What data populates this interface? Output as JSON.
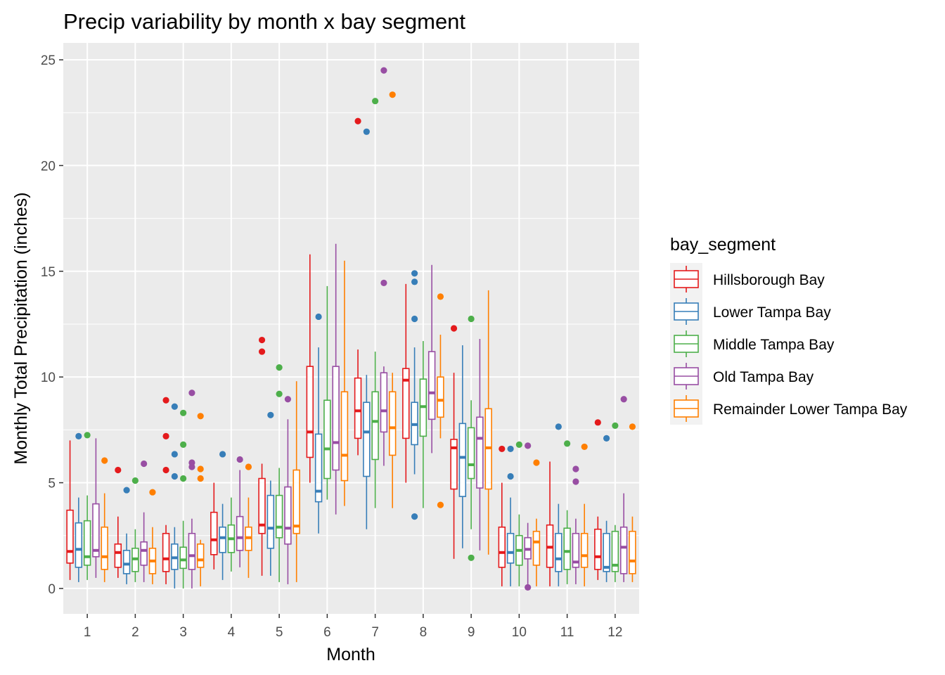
{
  "chart_data": {
    "type": "boxplot",
    "title": "Precip variability by month x bay segment",
    "xlabel": "Month",
    "ylabel": "Monthly Total Precipitation (inches)",
    "ylim": [
      -1.2,
      25.8
    ],
    "yticks": [
      0,
      5,
      10,
      15,
      20,
      25
    ],
    "categories": [
      "1",
      "2",
      "3",
      "4",
      "5",
      "6",
      "7",
      "8",
      "9",
      "10",
      "11",
      "12"
    ],
    "grid": true,
    "legend": {
      "title": "bay_segment",
      "position": "right"
    },
    "series": [
      {
        "name": "Hillsborough Bay",
        "color": "#e41a1c",
        "boxes": [
          {
            "min": 0.4,
            "q1": 1.2,
            "median": 1.75,
            "q3": 3.7,
            "max": 7.0,
            "outliers": []
          },
          {
            "min": 0.5,
            "q1": 1.0,
            "median": 1.7,
            "q3": 2.1,
            "max": 3.4,
            "outliers": [
              5.6
            ]
          },
          {
            "min": 0.2,
            "q1": 0.8,
            "median": 1.4,
            "q3": 2.6,
            "max": 3.0,
            "outliers": [
              5.6,
              7.2,
              8.9
            ]
          },
          {
            "min": 0.9,
            "q1": 1.6,
            "median": 2.3,
            "q3": 3.6,
            "max": 5.0,
            "outliers": []
          },
          {
            "min": 0.6,
            "q1": 2.6,
            "median": 3.0,
            "q3": 5.2,
            "max": 5.9,
            "outliers": [
              11.2,
              11.75
            ]
          },
          {
            "min": 5.0,
            "q1": 6.2,
            "median": 7.4,
            "q3": 10.5,
            "max": 15.8,
            "outliers": []
          },
          {
            "min": 6.3,
            "q1": 7.1,
            "median": 8.4,
            "q3": 9.95,
            "max": 11.3,
            "outliers": [
              22.1
            ]
          },
          {
            "min": 5.0,
            "q1": 7.1,
            "median": 9.85,
            "q3": 10.4,
            "max": 14.4,
            "outliers": []
          },
          {
            "min": 1.4,
            "q1": 4.7,
            "median": 6.65,
            "q3": 7.05,
            "max": 10.2,
            "outliers": [
              12.3
            ]
          },
          {
            "min": 0.1,
            "q1": 1.0,
            "median": 1.7,
            "q3": 2.9,
            "max": 5.0,
            "outliers": [
              6.6
            ]
          },
          {
            "min": 0.1,
            "q1": 1.0,
            "median": 1.95,
            "q3": 3.0,
            "max": 6.0,
            "outliers": []
          },
          {
            "min": 0.4,
            "q1": 0.9,
            "median": 1.5,
            "q3": 2.8,
            "max": 3.4,
            "outliers": [
              7.85
            ]
          }
        ]
      },
      {
        "name": "Lower Tampa Bay",
        "color": "#377eb8",
        "boxes": [
          {
            "min": 0.3,
            "q1": 1.0,
            "median": 1.85,
            "q3": 3.1,
            "max": 4.3,
            "outliers": [
              7.2
            ]
          },
          {
            "min": 0.2,
            "q1": 0.7,
            "median": 1.15,
            "q3": 1.8,
            "max": 2.6,
            "outliers": [
              4.65
            ]
          },
          {
            "min": 0.0,
            "q1": 0.9,
            "median": 1.45,
            "q3": 2.1,
            "max": 2.9,
            "outliers": [
              5.3,
              6.35,
              8.6
            ]
          },
          {
            "min": 0.4,
            "q1": 1.7,
            "median": 2.4,
            "q3": 2.9,
            "max": 4.0,
            "outliers": [
              6.35
            ]
          },
          {
            "min": 0.6,
            "q1": 1.9,
            "median": 2.85,
            "q3": 4.4,
            "max": 5.1,
            "outliers": [
              8.2
            ]
          },
          {
            "min": 2.6,
            "q1": 4.1,
            "median": 4.6,
            "q3": 7.3,
            "max": 11.4,
            "outliers": [
              12.85
            ]
          },
          {
            "min": 2.8,
            "q1": 5.3,
            "median": 7.4,
            "q3": 8.8,
            "max": 10.1,
            "outliers": [
              21.6
            ]
          },
          {
            "min": 5.4,
            "q1": 6.8,
            "median": 7.75,
            "q3": 8.8,
            "max": 11.4,
            "outliers": [
              3.4,
              12.75,
              14.5,
              14.9
            ]
          },
          {
            "min": 1.9,
            "q1": 4.35,
            "median": 6.2,
            "q3": 7.8,
            "max": 11.5,
            "outliers": []
          },
          {
            "min": 0.1,
            "q1": 1.2,
            "median": 1.7,
            "q3": 2.6,
            "max": 4.3,
            "outliers": [
              5.3,
              6.6
            ]
          },
          {
            "min": 0.1,
            "q1": 0.8,
            "median": 1.4,
            "q3": 2.6,
            "max": 4.0,
            "outliers": [
              7.65
            ]
          },
          {
            "min": 0.3,
            "q1": 0.8,
            "median": 1.0,
            "q3": 2.6,
            "max": 3.2,
            "outliers": [
              7.1
            ]
          }
        ]
      },
      {
        "name": "Middle Tampa Bay",
        "color": "#4daf4a",
        "boxes": [
          {
            "min": 0.4,
            "q1": 1.1,
            "median": 1.5,
            "q3": 3.2,
            "max": 4.4,
            "outliers": [
              7.25
            ]
          },
          {
            "min": 0.3,
            "q1": 0.8,
            "median": 1.4,
            "q3": 1.9,
            "max": 2.8,
            "outliers": [
              5.1
            ]
          },
          {
            "min": 0.0,
            "q1": 0.95,
            "median": 1.35,
            "q3": 1.95,
            "max": 3.2,
            "outliers": [
              5.2,
              6.8,
              8.3
            ]
          },
          {
            "min": 0.8,
            "q1": 1.7,
            "median": 2.35,
            "q3": 3.0,
            "max": 4.3,
            "outliers": []
          },
          {
            "min": 0.3,
            "q1": 2.4,
            "median": 2.9,
            "q3": 4.4,
            "max": 5.7,
            "outliers": [
              9.2,
              10.45
            ]
          },
          {
            "min": 4.2,
            "q1": 5.2,
            "median": 6.6,
            "q3": 8.9,
            "max": 14.3,
            "outliers": []
          },
          {
            "min": 3.8,
            "q1": 6.1,
            "median": 7.9,
            "q3": 9.3,
            "max": 11.2,
            "outliers": [
              23.05
            ]
          },
          {
            "min": 3.8,
            "q1": 7.2,
            "median": 8.6,
            "q3": 9.9,
            "max": 11.7,
            "outliers": []
          },
          {
            "min": 2.8,
            "q1": 5.2,
            "median": 5.85,
            "q3": 7.6,
            "max": 8.9,
            "outliers": [
              1.45,
              12.75
            ]
          },
          {
            "min": 0.1,
            "q1": 1.1,
            "median": 1.8,
            "q3": 2.5,
            "max": 3.5,
            "outliers": [
              6.8
            ]
          },
          {
            "min": 0.2,
            "q1": 0.9,
            "median": 1.75,
            "q3": 2.85,
            "max": 3.7,
            "outliers": [
              6.85
            ]
          },
          {
            "min": 0.3,
            "q1": 0.8,
            "median": 1.1,
            "q3": 2.7,
            "max": 3.0,
            "outliers": [
              7.7
            ]
          }
        ]
      },
      {
        "name": "Old Tampa Bay",
        "color": "#984ea3",
        "boxes": [
          {
            "min": 0.5,
            "q1": 1.5,
            "median": 1.8,
            "q3": 4.0,
            "max": 7.1,
            "outliers": []
          },
          {
            "min": 0.3,
            "q1": 1.1,
            "median": 1.8,
            "q3": 2.2,
            "max": 3.6,
            "outliers": [
              5.9
            ]
          },
          {
            "min": 0.0,
            "q1": 0.9,
            "median": 1.55,
            "q3": 2.6,
            "max": 3.3,
            "outliers": [
              5.75,
              5.95,
              9.25
            ]
          },
          {
            "min": 1.0,
            "q1": 1.8,
            "median": 2.4,
            "q3": 3.4,
            "max": 5.6,
            "outliers": [
              6.1
            ]
          },
          {
            "min": 0.2,
            "q1": 2.1,
            "median": 2.85,
            "q3": 4.8,
            "max": 8.0,
            "outliers": [
              8.95
            ]
          },
          {
            "min": 3.5,
            "q1": 5.6,
            "median": 6.9,
            "q3": 10.5,
            "max": 16.3,
            "outliers": []
          },
          {
            "min": 5.8,
            "q1": 7.4,
            "median": 8.4,
            "q3": 10.2,
            "max": 10.5,
            "outliers": [
              14.45,
              24.5
            ]
          },
          {
            "min": 6.4,
            "q1": 8.0,
            "median": 9.25,
            "q3": 11.2,
            "max": 15.3,
            "outliers": []
          },
          {
            "min": 1.8,
            "q1": 4.75,
            "median": 7.1,
            "q3": 8.1,
            "max": 11.8,
            "outliers": []
          },
          {
            "min": 0.2,
            "q1": 1.4,
            "median": 1.85,
            "q3": 2.4,
            "max": 3.1,
            "outliers": [
              0.05,
              6.75
            ]
          },
          {
            "min": 0.2,
            "q1": 1.0,
            "median": 1.25,
            "q3": 2.6,
            "max": 3.3,
            "outliers": [
              5.05,
              5.65
            ]
          },
          {
            "min": 0.3,
            "q1": 0.7,
            "median": 1.95,
            "q3": 2.9,
            "max": 4.5,
            "outliers": [
              8.95
            ]
          }
        ]
      },
      {
        "name": "Remainder Lower Tampa Bay",
        "color": "#ff7f00",
        "boxes": [
          {
            "min": 0.3,
            "q1": 0.9,
            "median": 1.5,
            "q3": 2.9,
            "max": 4.5,
            "outliers": [
              6.05
            ]
          },
          {
            "min": 0.2,
            "q1": 0.7,
            "median": 1.3,
            "q3": 1.9,
            "max": 2.9,
            "outliers": [
              4.55
            ]
          },
          {
            "min": 0.1,
            "q1": 1.0,
            "median": 1.35,
            "q3": 2.1,
            "max": 2.3,
            "outliers": [
              5.2,
              5.65,
              8.15
            ]
          },
          {
            "min": 0.5,
            "q1": 1.8,
            "median": 2.4,
            "q3": 2.9,
            "max": 4.3,
            "outliers": [
              5.75
            ]
          },
          {
            "min": 0.3,
            "q1": 2.6,
            "median": 2.95,
            "q3": 5.6,
            "max": 9.8,
            "outliers": []
          },
          {
            "min": 3.9,
            "q1": 5.1,
            "median": 6.3,
            "q3": 9.3,
            "max": 15.5,
            "outliers": []
          },
          {
            "min": 3.8,
            "q1": 6.3,
            "median": 7.6,
            "q3": 9.3,
            "max": 10.2,
            "outliers": [
              23.35
            ]
          },
          {
            "min": 7.1,
            "q1": 8.1,
            "median": 8.9,
            "q3": 10.0,
            "max": 12.0,
            "outliers": [
              3.95,
              13.8
            ]
          },
          {
            "min": 1.6,
            "q1": 4.7,
            "median": 6.65,
            "q3": 8.5,
            "max": 14.1,
            "outliers": []
          },
          {
            "min": 0.1,
            "q1": 1.1,
            "median": 2.2,
            "q3": 2.7,
            "max": 3.3,
            "outliers": [
              5.95
            ]
          },
          {
            "min": 0.1,
            "q1": 1.0,
            "median": 1.55,
            "q3": 2.6,
            "max": 4.0,
            "outliers": [
              6.7
            ]
          },
          {
            "min": 0.3,
            "q1": 0.7,
            "median": 1.3,
            "q3": 2.7,
            "max": 3.4,
            "outliers": [
              7.65
            ]
          }
        ]
      }
    ]
  }
}
